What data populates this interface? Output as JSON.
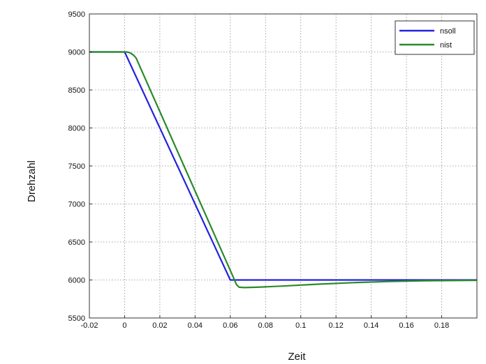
{
  "chart_data": {
    "type": "line",
    "title": "",
    "xlabel": "Zeit",
    "ylabel": "Drehzahl",
    "xlim": [
      -0.02,
      0.2
    ],
    "ylim": [
      5500,
      9500
    ],
    "xticks": [
      -0.02,
      0,
      0.02,
      0.04,
      0.06,
      0.08,
      0.1,
      0.12,
      0.14,
      0.16,
      0.18
    ],
    "xtick_labels": [
      "-0.02",
      "0",
      "0.02",
      "0.04",
      "0.06",
      "0.08",
      "0.1",
      "0.12",
      "0.14",
      "0.16",
      "0.18"
    ],
    "yticks": [
      5500,
      6000,
      6500,
      7000,
      7500,
      8000,
      8500,
      9000,
      9500
    ],
    "ytick_labels": [
      "5500",
      "6000",
      "6500",
      "7000",
      "7500",
      "8000",
      "8500",
      "9000",
      "9500"
    ],
    "grid": true,
    "legend_position": "top-right",
    "series": [
      {
        "name": "nsoll",
        "color": "#2222dd",
        "x": [
          -0.02,
          0,
          0.06,
          0.2
        ],
        "y": [
          9000,
          9000,
          6000,
          6000
        ]
      },
      {
        "name": "nist",
        "color": "#2a8a2a",
        "x": [
          -0.02,
          0.001,
          0.003,
          0.005,
          0.0065,
          0.062,
          0.0635,
          0.065,
          0.068,
          0.075,
          0.09,
          0.11,
          0.13,
          0.15,
          0.17,
          0.2
        ],
        "y": [
          9000,
          9000,
          8990,
          8960,
          8920,
          6020,
          5940,
          5905,
          5900,
          5905,
          5920,
          5945,
          5965,
          5980,
          5990,
          5995
        ]
      }
    ]
  }
}
